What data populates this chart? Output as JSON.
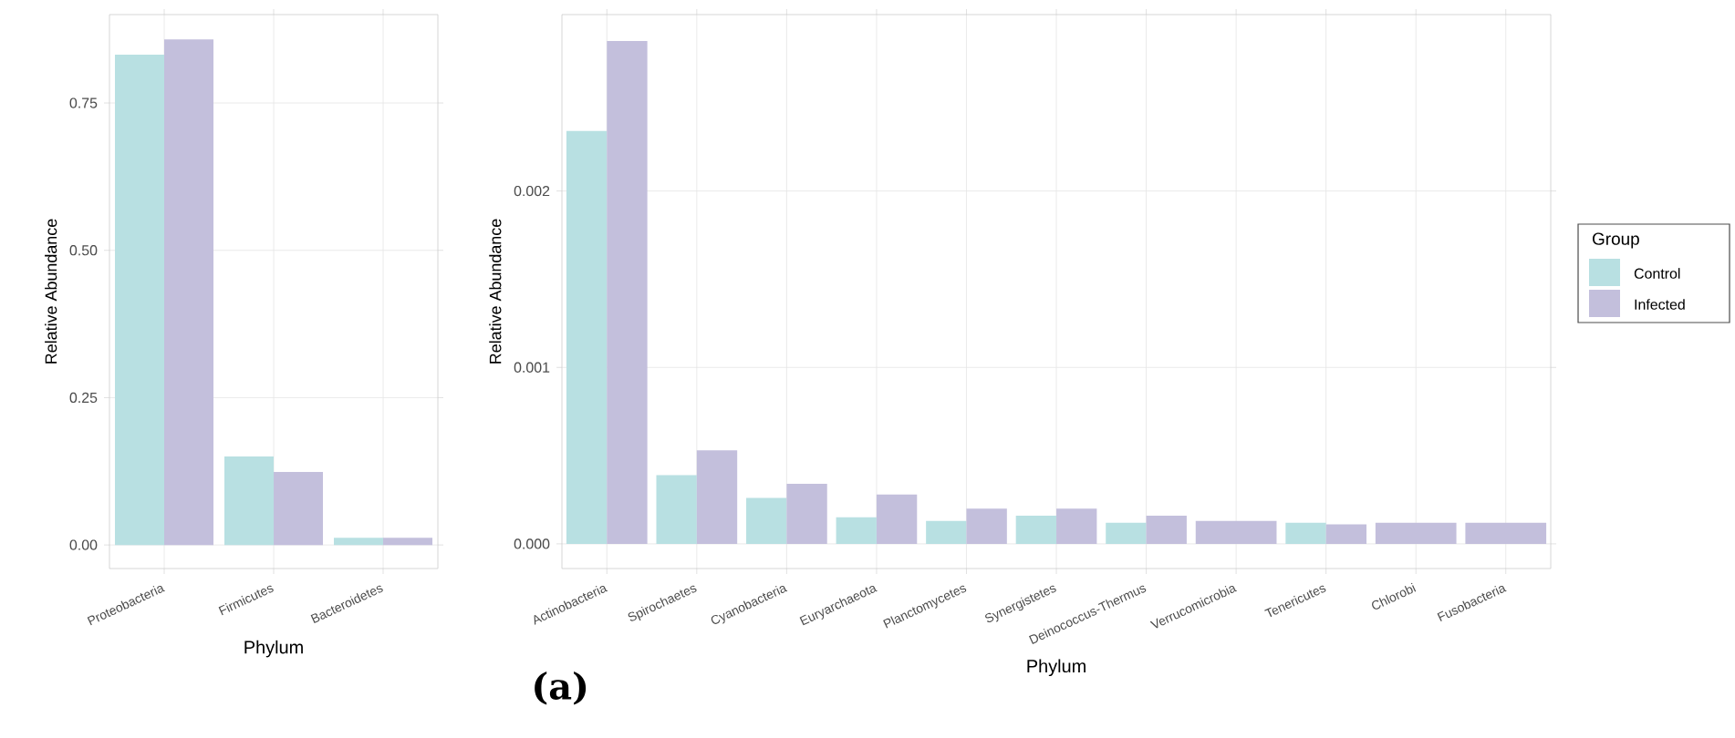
{
  "chart_data": [
    {
      "type": "bar",
      "xlabel": "Phylum",
      "ylabel": "Relative Abundance",
      "categories": [
        "Proteobacteria",
        "Firmicutes",
        "Bacteroidetes"
      ],
      "series": [
        {
          "color": "#b8e0e2",
          "values": [
            0.832,
            0.15,
            0.012
          ]
        },
        {
          "color": "#c3bfdc",
          "values": [
            0.858,
            0.124,
            0.012
          ]
        }
      ],
      "ylim": [
        -0.04,
        0.9
      ],
      "yticks": [
        {
          "value": 0,
          "label": "0.00"
        },
        {
          "value": 0.25,
          "label": "0.25"
        },
        {
          "value": 0.5,
          "label": "0.50"
        },
        {
          "value": 0.75,
          "label": "0.75"
        }
      ],
      "grid": true
    },
    {
      "type": "bar",
      "xlabel": "Phylum",
      "ylabel": "Relative Abundance",
      "legend_title": "Group",
      "legend": "right",
      "annotations": [
        "(a)"
      ],
      "categories": [
        "Actinobacteria",
        "Spirochaetes",
        "Cyanobacteria",
        "Euryarchaeota",
        "Planctomycetes",
        "Synergistetes",
        "Deinococcus-Thermus",
        "Verrucomicrobia",
        "Tenericutes",
        "Chlorobi",
        "Fusobacteria"
      ],
      "series": [
        {
          "name": "Control",
          "color": "#b8e0e2",
          "values": [
            0.00234,
            0.00039,
            0.00026,
            0.00015,
            0.00013,
            0.00016,
            0.00012,
            null,
            0.00012,
            null,
            null
          ]
        },
        {
          "name": "Infected",
          "color": "#c3bfdc",
          "values": [
            0.00285,
            0.00053,
            0.00034,
            0.00028,
            0.0002,
            0.0002,
            0.00016,
            0.00013,
            0.00011,
            0.00012,
            0.00012
          ]
        }
      ],
      "ylim": [
        -0.00014,
        0.003
      ],
      "yticks": [
        {
          "value": 0,
          "label": "0.000"
        },
        {
          "value": 0.001,
          "label": "0.001"
        },
        {
          "value": 0.002,
          "label": "0.002"
        }
      ],
      "grid": true
    }
  ]
}
